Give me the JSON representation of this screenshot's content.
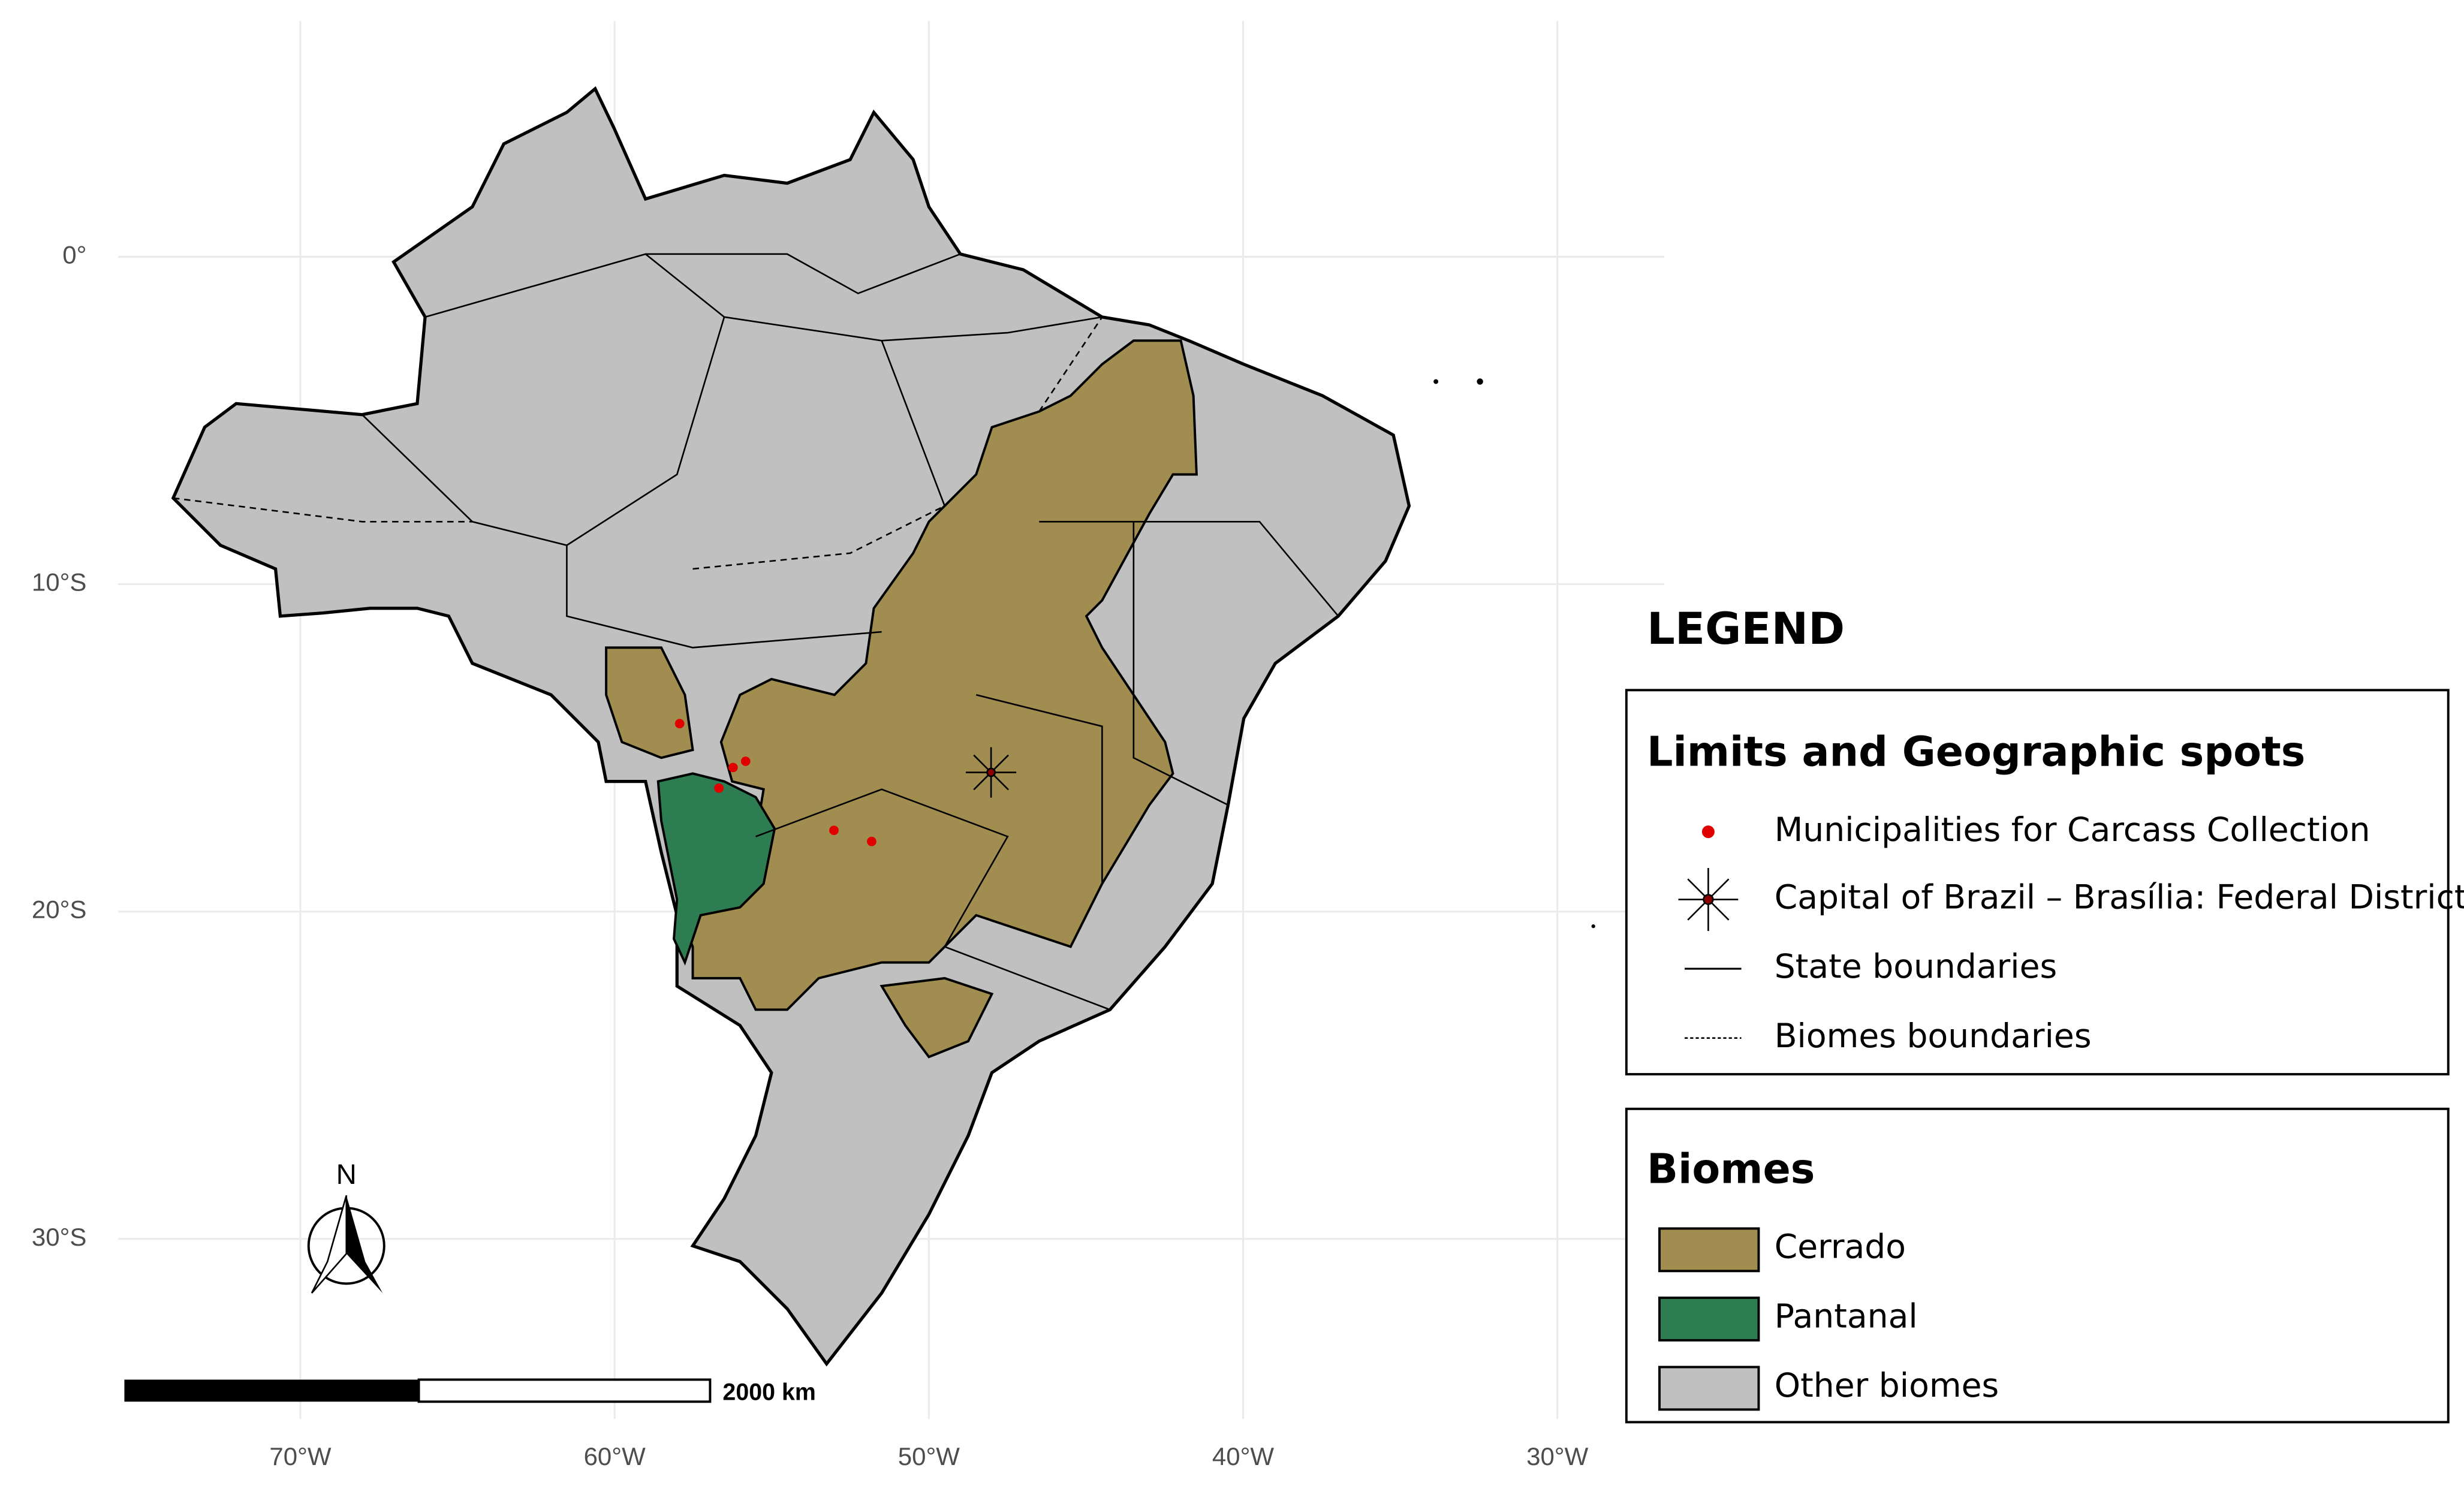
{
  "chart_data": {
    "type": "map",
    "xlim": [
      -75.8,
      -26.6
    ],
    "ylim": [
      -35.5,
      7.2
    ],
    "grid": true,
    "xticks": [
      {
        "value": -70,
        "label": "70°W"
      },
      {
        "value": -60,
        "label": "60°W"
      },
      {
        "value": -50,
        "label": "50°W"
      },
      {
        "value": -40,
        "label": "40°W"
      },
      {
        "value": -30,
        "label": "30°W"
      }
    ],
    "yticks": [
      {
        "value": 0,
        "label": "0°"
      },
      {
        "value": -10,
        "label": "10°S"
      },
      {
        "value": -20,
        "label": "20°S"
      },
      {
        "value": -30,
        "label": "30°S"
      }
    ],
    "points": {
      "name": "Municipalities for Carcass Collection",
      "color": "#e00000",
      "x": [
        -57.93,
        -56.23,
        -55.83,
        -56.68,
        -53.02,
        -51.82
      ],
      "y": [
        -14.26,
        -15.6,
        -15.41,
        -16.23,
        -17.52,
        -17.86
      ]
    },
    "capital": {
      "name": "Capital of Brazil – Brasília: Federal District",
      "x": -48.02,
      "y": -15.75
    },
    "legend": {
      "title": "LEGEND",
      "limits_title": "Limits and Geographic spots",
      "state_boundaries": "State boundaries",
      "biome_boundaries": "Biomes boundaries",
      "biomes_title": "Biomes"
    },
    "biomes": [
      {
        "name": "Cerrado",
        "color": "#a08d4f"
      },
      {
        "name": "Pantanal",
        "color": "#2e7d52"
      },
      {
        "name": "Other biomes",
        "color": "#c0c0c0"
      }
    ],
    "scale_label": "2000 km",
    "north_label": "N"
  }
}
